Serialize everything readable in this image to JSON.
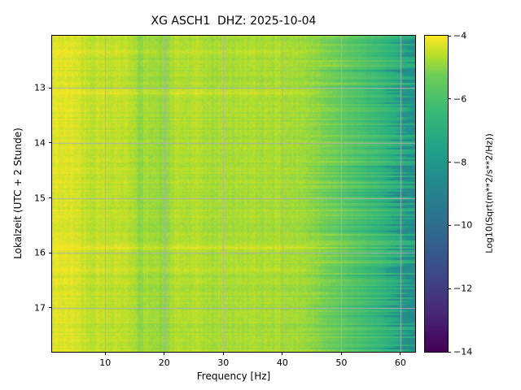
{
  "figure": {
    "title": "XG ASCH1  DHZ: 2025-10-04",
    "xlabel": "Frequency [Hz]",
    "ylabel": "Lokalzeit (UTC + 2 Stunde)",
    "colorbar": {
      "label": "Log10(Sqrt(m**2/s**2/Hz))"
    }
  },
  "chart_data": {
    "type": "heatmap",
    "title": "XG ASCH1  DHZ: 2025-10-04",
    "xlabel": "Frequency [Hz]",
    "ylabel": "Lokalzeit (UTC + 2 Stunde)",
    "x_range": [
      1,
      62.5
    ],
    "y_range": [
      12.05,
      17.8
    ],
    "x_ticks": [
      10,
      20,
      30,
      40,
      50,
      60
    ],
    "y_ticks": [
      13,
      14,
      15,
      16,
      17
    ],
    "grid": true,
    "grid_color": "#b0b0b0",
    "colormap": "viridis",
    "colormap_stops": [
      [
        0,
        68,
        1,
        84
      ],
      [
        0.125,
        72,
        40,
        120
      ],
      [
        0.25,
        62,
        74,
        137
      ],
      [
        0.375,
        49,
        104,
        142
      ],
      [
        0.5,
        38,
        130,
        142
      ],
      [
        0.625,
        31,
        158,
        137
      ],
      [
        0.75,
        53,
        183,
        121
      ],
      [
        0.875,
        109,
        205,
        89
      ],
      [
        0.9375,
        180,
        222,
        44
      ],
      [
        1,
        253,
        231,
        37
      ]
    ],
    "value_range": [
      -14,
      -4
    ],
    "colorbar_label": "Log10(Sqrt(m**2/s**2/Hz))",
    "colorbar_ticks": [
      -4,
      -6,
      -8,
      -10,
      -12,
      -14
    ],
    "colorbar_tick_labels": [
      "−4",
      "−6",
      "−8",
      "−10",
      "−12",
      "−14"
    ],
    "freq_profile": [
      [
        1,
        -4.35
      ],
      [
        1.5,
        -4.25
      ],
      [
        3,
        -4.3
      ],
      [
        5,
        -4.3
      ],
      [
        6,
        -4.45
      ],
      [
        8,
        -4.55
      ],
      [
        9,
        -4.45
      ],
      [
        10,
        -4.55
      ],
      [
        12,
        -4.5
      ],
      [
        14,
        -4.6
      ],
      [
        15,
        -4.65
      ],
      [
        15.8,
        -5.1
      ],
      [
        16.6,
        -4.8
      ],
      [
        18,
        -4.75
      ],
      [
        19,
        -4.9
      ],
      [
        20,
        -5.0
      ],
      [
        21,
        -4.8
      ],
      [
        22,
        -4.65
      ],
      [
        24,
        -4.7
      ],
      [
        26,
        -4.65
      ],
      [
        28,
        -4.8
      ],
      [
        30,
        -4.7
      ],
      [
        32,
        -4.75
      ],
      [
        34,
        -4.7
      ],
      [
        36,
        -4.75
      ],
      [
        38,
        -4.7
      ],
      [
        40,
        -4.75
      ],
      [
        42,
        -4.8
      ],
      [
        44,
        -4.85
      ],
      [
        46,
        -5.0
      ],
      [
        48,
        -5.25
      ],
      [
        50,
        -5.55
      ],
      [
        52,
        -5.85
      ],
      [
        54,
        -6.1
      ],
      [
        56,
        -6.45
      ],
      [
        58,
        -6.8
      ],
      [
        59.5,
        -7.1
      ],
      [
        60.5,
        -7.5
      ],
      [
        61,
        -8.2
      ],
      [
        62.5,
        -8.6
      ]
    ],
    "row_events": [
      {
        "t": 12.35,
        "dv": 0.25,
        "w": 0.05
      },
      {
        "t": 13.08,
        "dv": 0.3,
        "w": 0.04
      },
      {
        "t": 14.5,
        "dv": 0.12,
        "w": 0.05
      },
      {
        "t": 15.9,
        "dv": 0.3,
        "w": 0.05
      },
      {
        "t": 16.3,
        "dv": 0.15,
        "w": 0.04
      },
      {
        "t": 17.15,
        "dv": 0.12,
        "w": 0.04
      }
    ],
    "noise": {
      "column": 0.09,
      "row": 0.1,
      "pixel": 0.1,
      "edge_shift_hz": 3.5
    },
    "seed": 42
  }
}
